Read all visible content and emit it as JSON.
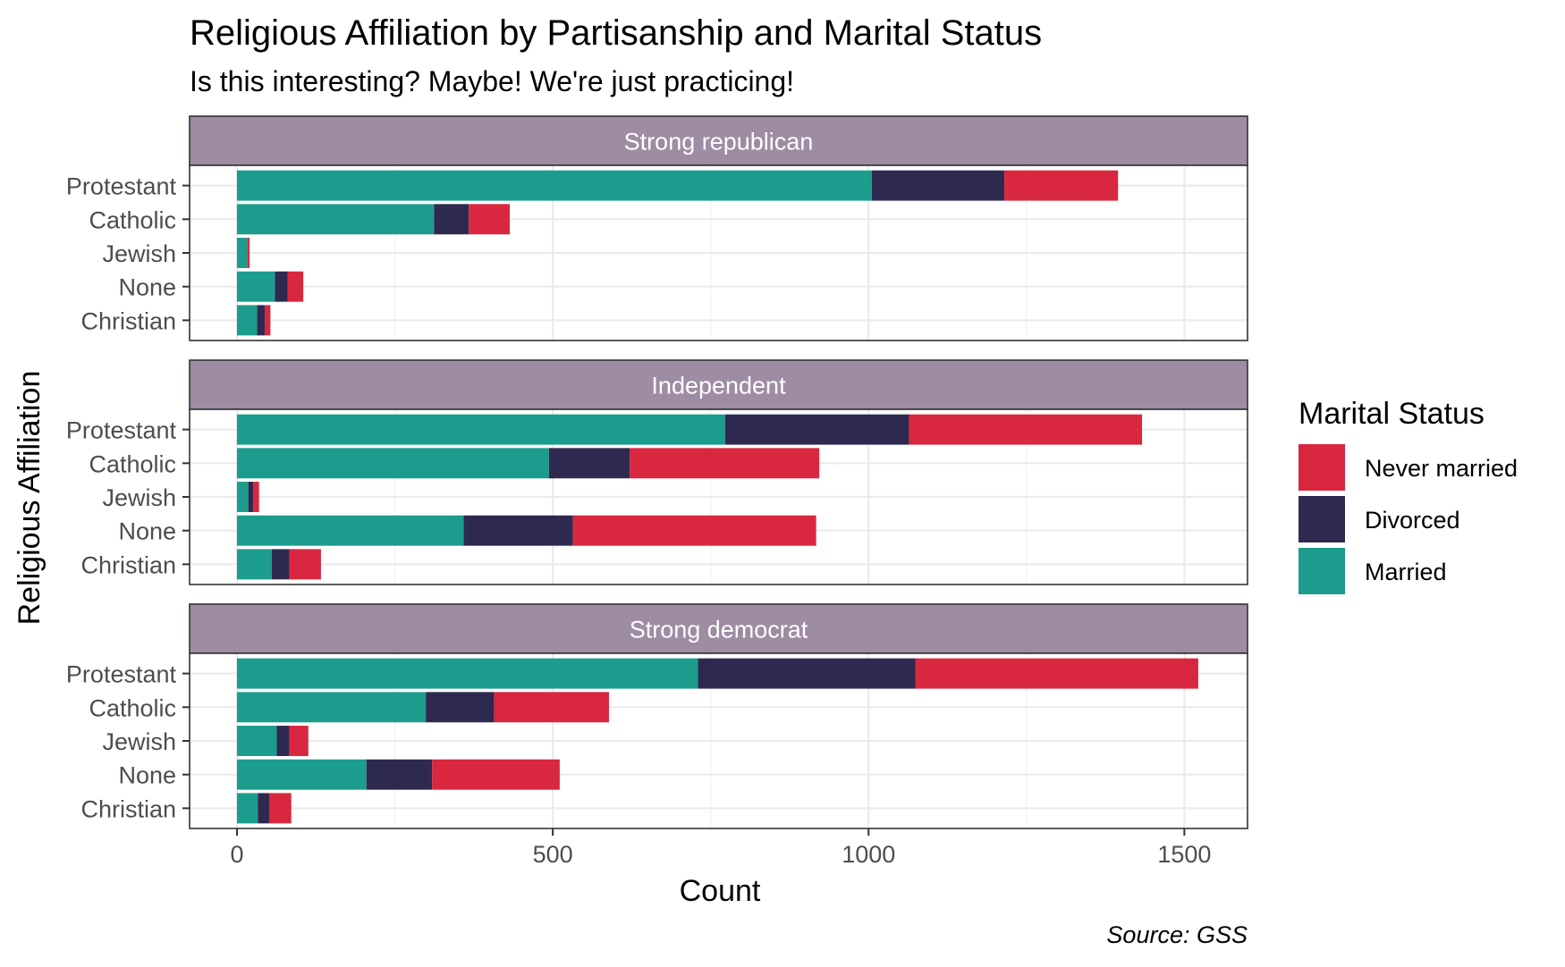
{
  "chart_data": {
    "type": "bar",
    "orientation": "horizontal",
    "stacked": true,
    "title": "Religious Affiliation by Partisanship and Marital Status",
    "subtitle": "Is this interesting? Maybe! We're just practicing!",
    "caption": "Source: GSS",
    "xlabel": "Count",
    "ylabel": "Religious Affiliation",
    "xlim": [
      -75,
      1600
    ],
    "xticks": [
      0,
      500,
      1000,
      1500
    ],
    "grid": true,
    "legend": {
      "title": "Marital Status",
      "placement": "right",
      "entries": [
        "Never married",
        "Divorced",
        "Married"
      ]
    },
    "categories": [
      "Protestant",
      "Catholic",
      "Jewish",
      "None",
      "Christian"
    ],
    "series_colors": {
      "Married": "#1b9c8c",
      "Divorced": "#2e2a4f",
      "Never married": "#d9273f"
    },
    "strip_color": "#9e8ca3",
    "facets": [
      {
        "name": "Strong republican",
        "series": [
          {
            "name": "Married",
            "values": [
              1005,
              312,
              16,
              60,
              32
            ]
          },
          {
            "name": "Divorced",
            "values": [
              210,
              55,
              0,
              20,
              12
            ]
          },
          {
            "name": "Never married",
            "values": [
              180,
              65,
              4,
              25,
              9
            ]
          }
        ]
      },
      {
        "name": "Independent",
        "series": [
          {
            "name": "Married",
            "values": [
              773,
              494,
              18,
              359,
              55
            ]
          },
          {
            "name": "Divorced",
            "values": [
              291,
              128,
              8,
              173,
              28
            ]
          },
          {
            "name": "Never married",
            "values": [
              369,
              300,
              9,
              385,
              50
            ]
          }
        ]
      },
      {
        "name": "Strong democrat",
        "series": [
          {
            "name": "Married",
            "values": [
              730,
              299,
              63,
              205,
              33
            ]
          },
          {
            "name": "Divorced",
            "values": [
              344,
              108,
              20,
              104,
              18
            ]
          },
          {
            "name": "Never married",
            "values": [
              448,
              182,
              30,
              202,
              35
            ]
          }
        ]
      }
    ]
  }
}
